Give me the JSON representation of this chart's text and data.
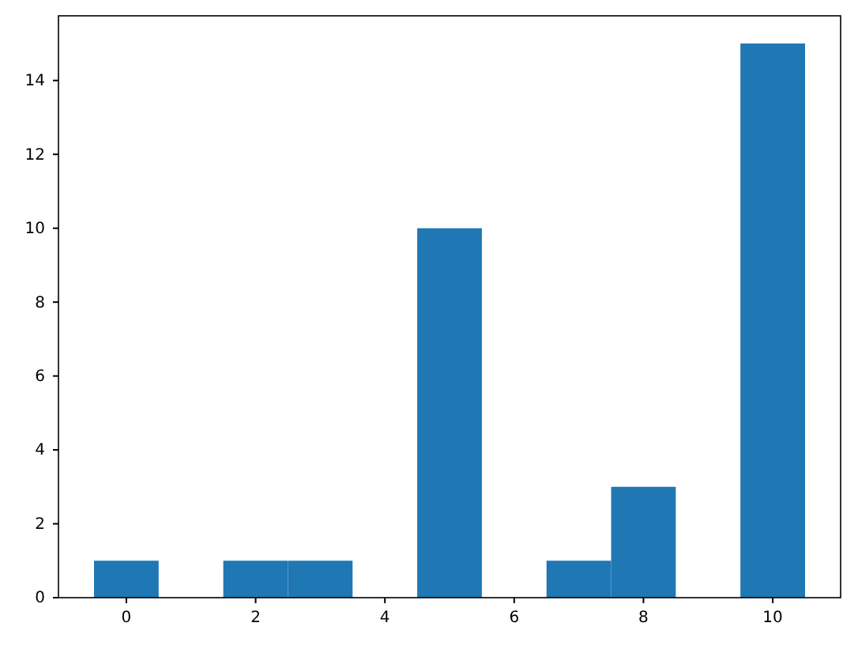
{
  "chart_data": {
    "type": "histogram",
    "bins": [
      -0.5,
      0.5,
      1.5,
      2.5,
      3.5,
      4.5,
      5.5,
      6.5,
      7.5,
      8.5,
      9.5,
      10.5
    ],
    "values": [
      1,
      0,
      1,
      1,
      0,
      10,
      0,
      1,
      3,
      0,
      15
    ],
    "color": "#1f77b4",
    "xlim": [
      -1.05,
      11.05
    ],
    "xticks": [
      0,
      2,
      4,
      6,
      8,
      10
    ],
    "ylim": [
      0,
      15.75
    ],
    "yticks": [
      0,
      2,
      4,
      6,
      8,
      10,
      12,
      14
    ],
    "grid": false
  }
}
